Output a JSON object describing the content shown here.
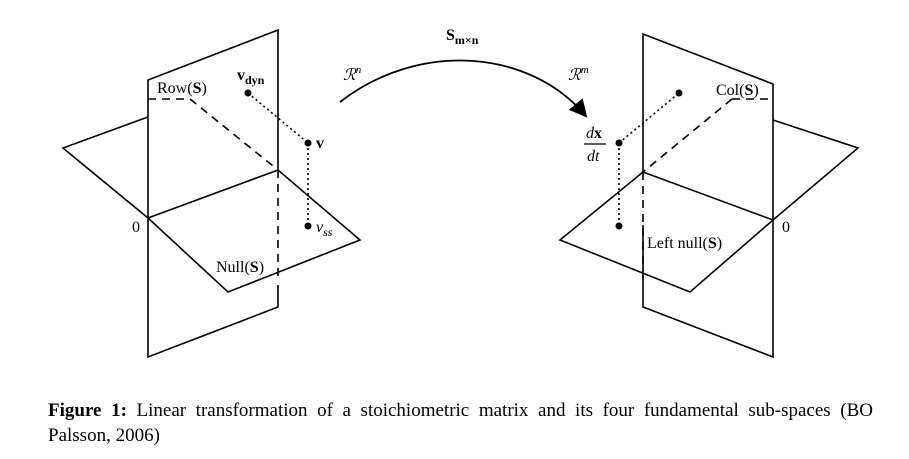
{
  "diagram": {
    "domain_space": "ℛ",
    "domain_dim": "n",
    "codomain_space": "ℛ",
    "codomain_dim": "m",
    "matrix_symbol": "S",
    "matrix_subscript": "m×n",
    "row_label_prefix": "Row(",
    "col_label_prefix": "Col(",
    "null_label_prefix": "Null(",
    "left_null_label_prefix": "Left null(",
    "matrix_in_label": "S",
    "label_suffix": ")",
    "origin_left": "0",
    "origin_right": "0",
    "v_dyn_main": "v",
    "v_dyn_sub": "dyn",
    "v_label": "v",
    "v_ss_main": "v",
    "v_ss_sub": "ss",
    "dxdt_num_d": "d",
    "dxdt_num_x": "x",
    "dxdt_den": "dt"
  },
  "caption": {
    "label": "Figure 1:",
    "text": " Linear transformation of a stoichiometric matrix and its four fundamental sub-spaces (BO Palsson, 2006)"
  }
}
